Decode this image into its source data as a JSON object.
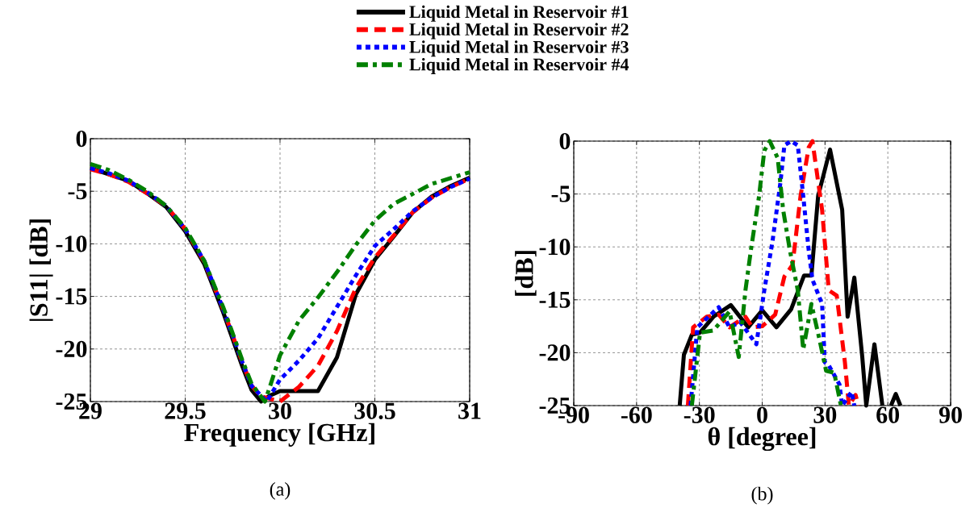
{
  "chart_data": [
    {
      "type": "line",
      "xlabel": "Frequency [GHz]",
      "ylabel": "|S11| [dB]",
      "xlim": [
        29,
        31
      ],
      "ylim": [
        -25,
        0
      ],
      "xticks": [
        29,
        29.5,
        30,
        30.5,
        31
      ],
      "yticks": [
        -25,
        -20,
        -15,
        -10,
        -5,
        0
      ],
      "grid": true,
      "legend": "top",
      "annotations": [
        "(a)"
      ],
      "series": [
        {
          "name": "Liquid Metal in Reservoir #1",
          "color": "#000000",
          "line_style": "solid",
          "x": [
            29,
            29.1,
            29.2,
            29.3,
            29.4,
            29.5,
            29.6,
            29.7,
            29.8,
            29.85,
            29.9,
            29.95,
            30.0,
            30.2,
            30.3,
            30.4,
            30.5,
            30.6,
            30.7,
            30.8,
            30.9,
            31
          ],
          "values": [
            -2.8,
            -3.4,
            -4.0,
            -5.2,
            -6.5,
            -8.8,
            -11.9,
            -16.5,
            -21.6,
            -23.9,
            -25,
            -24.4,
            -24.0,
            -24.0,
            -20.8,
            -14.8,
            -11.5,
            -9.3,
            -7.0,
            -5.5,
            -4.5,
            -3.7
          ]
        },
        {
          "name": "Liquid Metal in Reservoir #2",
          "color": "#ff0000",
          "line_style": "dashed",
          "x": [
            29,
            29.1,
            29.2,
            29.3,
            29.4,
            29.5,
            29.6,
            29.7,
            29.8,
            29.85,
            29.9,
            30.0,
            30.1,
            30.2,
            30.3,
            30.4,
            30.5,
            30.6,
            30.7,
            30.8,
            30.9,
            31
          ],
          "values": [
            -2.9,
            -3.4,
            -4.1,
            -5.2,
            -6.4,
            -8.6,
            -11.7,
            -16.2,
            -21.2,
            -23.5,
            -24.5,
            -25,
            -23.6,
            -21.6,
            -18.3,
            -14.2,
            -11.3,
            -9.2,
            -7.0,
            -5.6,
            -4.6,
            -3.8
          ]
        },
        {
          "name": "Liquid Metal in Reservoir #3",
          "color": "#0000ff",
          "line_style": "dotted",
          "x": [
            29,
            29.1,
            29.2,
            29.3,
            29.4,
            29.5,
            29.6,
            29.7,
            29.8,
            29.85,
            29.93,
            30.0,
            30.1,
            30.2,
            30.3,
            30.4,
            30.5,
            30.6,
            30.7,
            30.8,
            30.9,
            31
          ],
          "values": [
            -2.8,
            -3.3,
            -4.0,
            -5.1,
            -6.4,
            -8.6,
            -11.6,
            -16.2,
            -21.2,
            -23.5,
            -25,
            -22.9,
            -21.1,
            -19.0,
            -16.0,
            -13.0,
            -10.2,
            -8.6,
            -6.9,
            -5.6,
            -4.6,
            -3.8
          ]
        },
        {
          "name": "Liquid Metal in Reservoir #4",
          "color": "#008000",
          "line_style": "dashdot",
          "x": [
            29,
            29.1,
            29.2,
            29.3,
            29.4,
            29.5,
            29.6,
            29.7,
            29.8,
            29.85,
            29.92,
            29.95,
            30.0,
            30.1,
            30.2,
            30.3,
            30.4,
            30.5,
            30.6,
            30.8,
            31
          ],
          "values": [
            -2.4,
            -3.0,
            -3.9,
            -5.0,
            -6.4,
            -8.5,
            -11.6,
            -16.0,
            -21.0,
            -23.3,
            -25,
            -23.4,
            -20.6,
            -17.3,
            -15.1,
            -12.7,
            -10.1,
            -7.8,
            -6.2,
            -4.3,
            -3.2
          ]
        }
      ]
    },
    {
      "type": "line",
      "xlabel": "θ [degree]",
      "ylabel": "[dB]",
      "xlim": [
        -90,
        90
      ],
      "ylim": [
        -25,
        0
      ],
      "xticks": [
        -90,
        -60,
        -30,
        0,
        30,
        60,
        90
      ],
      "yticks": [
        -25,
        -20,
        -15,
        -10,
        -5,
        0
      ],
      "grid": true,
      "annotations": [
        "(b)"
      ],
      "series": [
        {
          "color": "#000000",
          "line_style": "solid",
          "x": [
            -39.4,
            -37.4,
            -33.6,
            -29.7,
            -23.3,
            -15,
            -6.7,
            0,
            6.8,
            13.8,
            20,
            23.5,
            26.7,
            32.4,
            38.2,
            40.8,
            44,
            47.8,
            49.7,
            53.6,
            57.4,
            59,
            61.5,
            63.8,
            66
          ],
          "values": [
            -25,
            -20.2,
            -18.3,
            -18.1,
            -16.6,
            -15.5,
            -17.6,
            -16,
            -17.6,
            -15.9,
            -12.7,
            -12.7,
            -5.2,
            -0.8,
            -6.5,
            -16.6,
            -12.9,
            -20.4,
            -25,
            -19.2,
            -25,
            null,
            -25,
            -23.9,
            -25
          ]
        },
        {
          "color": "#ff0000",
          "line_style": "dashed",
          "x": [
            -35.5,
            -33,
            -26.5,
            -20.8,
            -15.6,
            -8,
            -4.7,
            0,
            6.2,
            10.6,
            14.5,
            18.3,
            22.2,
            24,
            28.6,
            31.8,
            35.6,
            39.5,
            41.4,
            44.6,
            45.9
          ],
          "values": [
            -25,
            -17.6,
            -16.6,
            -16.4,
            -17.6,
            -16.6,
            -17.6,
            -17.5,
            -16.4,
            -12.8,
            -11.7,
            -5.2,
            -0.6,
            0,
            -6.5,
            -14.1,
            -14.6,
            -20.9,
            -25,
            -24,
            -25
          ]
        },
        {
          "color": "#0000ff",
          "line_style": "dotted",
          "x": [
            -34.2,
            -31,
            -20.8,
            -15.6,
            -10.5,
            -2.8,
            1,
            4.9,
            8.7,
            10.6,
            13.8,
            17,
            19.6,
            22.2,
            24,
            28.6,
            29.9,
            31.8,
            36.9,
            38.2,
            42.7,
            44
          ],
          "values": [
            -25,
            -17.6,
            -15.7,
            -17.6,
            -17.1,
            -19.2,
            -14.1,
            -9.5,
            -3.9,
            -0.4,
            0,
            -0.4,
            -5.2,
            -10.3,
            -13.1,
            -15.4,
            -20.9,
            -21.2,
            -23,
            -25,
            -23.7,
            -25
          ]
        },
        {
          "color": "#008000",
          "line_style": "dashdot",
          "x": [
            -33.6,
            -29.7,
            -23.3,
            -15.6,
            -11.2,
            -8,
            -5.4,
            -1.5,
            1,
            3.6,
            7.4,
            10,
            13.2,
            17,
            19.6,
            23.5,
            27.3,
            30.5,
            34.4,
            37.6
          ],
          "values": [
            -25,
            -18.1,
            -17.9,
            -16.1,
            -20.4,
            -14.1,
            -10.3,
            -5.2,
            -0.9,
            0,
            -1.6,
            -6.5,
            -10.3,
            -14.1,
            -19.7,
            -15.4,
            -18.7,
            -21.7,
            -21.9,
            -25
          ]
        }
      ]
    }
  ]
}
